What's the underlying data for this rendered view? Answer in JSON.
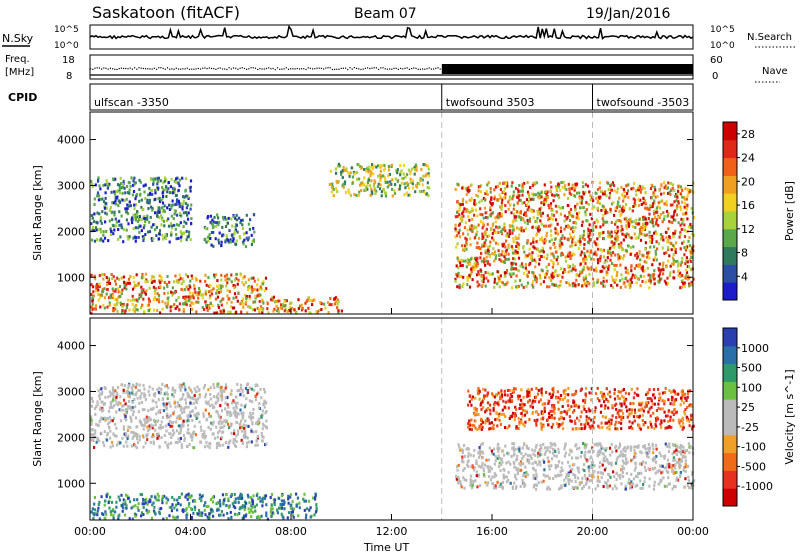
{
  "header": {
    "station": "Saskatoon (fitACF)",
    "beam": "Beam 07",
    "date": "19/Jan/2016"
  },
  "strips": {
    "nsky": {
      "label": "N.Sky",
      "right_label": "N.Search",
      "left_ticks": [
        "10^5",
        "10^0"
      ],
      "right_ticks": [
        "10^5",
        "10^0"
      ]
    },
    "freq": {
      "label_line1": "Freq.",
      "label_line2": "[MHz]",
      "left_ticks": [
        "18",
        "8"
      ],
      "right_label": "Nave",
      "right_ticks": [
        "60",
        "0"
      ]
    },
    "cpid": {
      "label": "CPID",
      "segments": [
        {
          "label": "ulfscan -3350",
          "start_hour": 0
        },
        {
          "label": "twofsound 3503",
          "start_hour": 14
        },
        {
          "label": "twofsound -3503",
          "start_hour": 20
        }
      ]
    }
  },
  "colors": {
    "power": [
      "#1c1ccc",
      "#2c4fa3",
      "#2f7a5c",
      "#5aa84a",
      "#a8d23a",
      "#f0d020",
      "#f0a020",
      "#f06018",
      "#e02818",
      "#cc0000"
    ],
    "velocity": [
      "#2a40b0",
      "#2a6fa8",
      "#2e9a6a",
      "#6cc040",
      "#bbbbbb",
      "#bbbbbb",
      "#f0a028",
      "#f06a18",
      "#e83020",
      "#cc0000"
    ]
  },
  "chart_data": [
    {
      "type": "heatmap",
      "title": "",
      "xlabel": "Time UT",
      "ylabel": "Slant Range [km]",
      "x_unit": "hour",
      "xlim": [
        0,
        24
      ],
      "ylim": [
        200,
        4600
      ],
      "x_tick_labels": [
        "00:00",
        "04:00",
        "08:00",
        "12:00",
        "16:00",
        "20:00",
        "00:00"
      ],
      "y_tick_labels": [
        "1000",
        "2000",
        "3000",
        "4000"
      ],
      "colorbar": {
        "label": "Power [dB]",
        "tick_labels": [
          "4",
          "8",
          "12",
          "16",
          "20",
          "24",
          "28"
        ],
        "range": [
          0,
          30
        ]
      },
      "regions": [
        {
          "t0": 0.0,
          "t1": 7.0,
          "r0": 250,
          "r1": 1100,
          "level": "high"
        },
        {
          "t0": 0.0,
          "t1": 4.0,
          "r0": 1800,
          "r1": 3200,
          "level": "low"
        },
        {
          "t0": 4.5,
          "t1": 6.5,
          "r0": 1700,
          "r1": 2400,
          "level": "low"
        },
        {
          "t0": 7.0,
          "t1": 10.0,
          "r0": 250,
          "r1": 600,
          "level": "high"
        },
        {
          "t0": 9.5,
          "t1": 13.5,
          "r0": 2800,
          "r1": 3500,
          "level": "medium"
        },
        {
          "t0": 14.5,
          "t1": 24.0,
          "r0": 800,
          "r1": 3100,
          "level": "high"
        }
      ]
    },
    {
      "type": "heatmap",
      "title": "",
      "xlabel": "Time UT",
      "ylabel": "Slant Range [km]",
      "x_unit": "hour",
      "xlim": [
        0,
        24
      ],
      "ylim": [
        200,
        4600
      ],
      "x_tick_labels": [
        "00:00",
        "04:00",
        "08:00",
        "12:00",
        "16:00",
        "20:00",
        "00:00"
      ],
      "y_tick_labels": [
        "1000",
        "2000",
        "3000",
        "4000"
      ],
      "colorbar": {
        "label": "Velocity [m s^-1]",
        "tick_labels": [
          "1000",
          "500",
          "100",
          "25",
          "-25",
          "-100",
          "-500",
          "-1000"
        ],
        "range": [
          -1000,
          1000
        ]
      },
      "regions": [
        {
          "t0": 0.0,
          "t1": 9.0,
          "r0": 250,
          "r1": 800,
          "level": "positive"
        },
        {
          "t0": 0.0,
          "t1": 7.0,
          "r0": 1800,
          "r1": 3200,
          "level": "near-zero"
        },
        {
          "t0": 14.5,
          "t1": 24.0,
          "r0": 900,
          "r1": 1900,
          "level": "near-zero"
        },
        {
          "t0": 15.0,
          "t1": 24.0,
          "r0": 2200,
          "r1": 3100,
          "level": "negative"
        }
      ]
    }
  ],
  "xaxis_label": "Time UT"
}
